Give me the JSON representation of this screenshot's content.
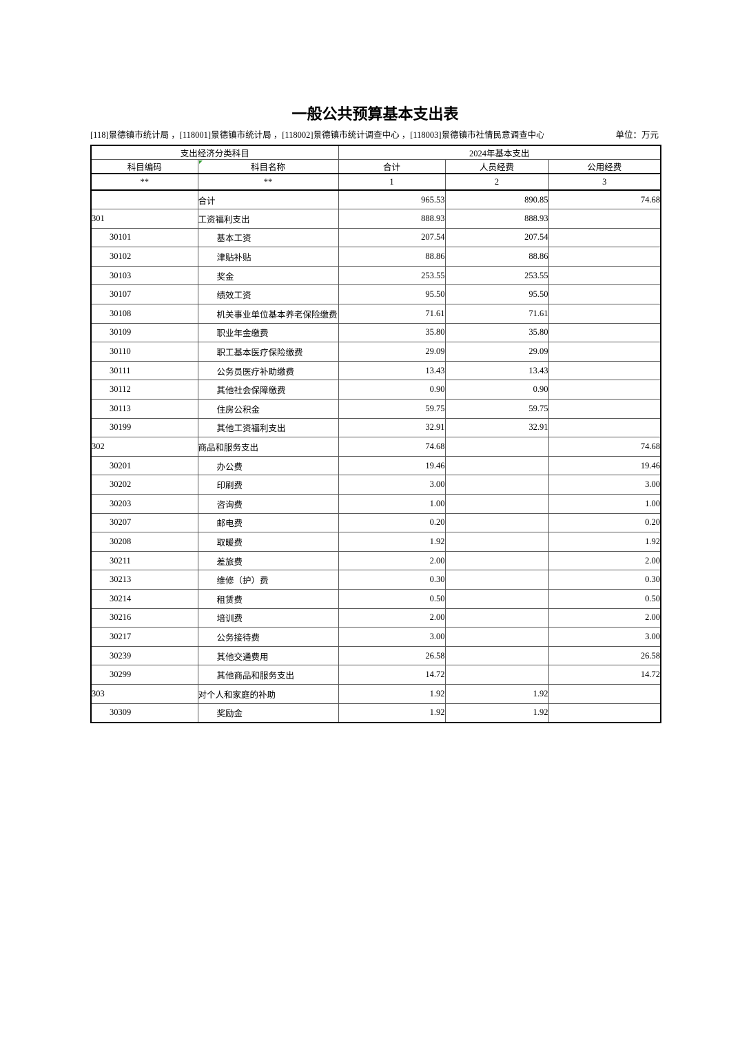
{
  "page": {
    "title": "一般公共预算基本支出表",
    "org_line": "[118]景德镇市统计局 ，[118001]景德镇市统计局 ，[118002]景德镇市统计调查中心 ，[118003]景德镇市社情民意调查中心",
    "unit_label": "单位：万元"
  },
  "table": {
    "header": {
      "group_left": "支出经济分类科目",
      "group_right": "2024年基本支出",
      "columns": [
        "科目编码",
        "科目名称",
        "合计",
        "人员经费",
        "公用经费"
      ],
      "column_codes": [
        "**",
        "**",
        "1",
        "2",
        "3"
      ]
    },
    "rows": [
      {
        "code": "",
        "name": "合计",
        "level": 0,
        "total": "965.53",
        "personnel": "890.85",
        "public": "74.68"
      },
      {
        "code": "301",
        "name": "工资福利支出",
        "level": 0,
        "total": "888.93",
        "personnel": "888.93",
        "public": ""
      },
      {
        "code": "30101",
        "name": "基本工资",
        "level": 1,
        "total": "207.54",
        "personnel": "207.54",
        "public": ""
      },
      {
        "code": "30102",
        "name": "津贴补贴",
        "level": 1,
        "total": "88.86",
        "personnel": "88.86",
        "public": ""
      },
      {
        "code": "30103",
        "name": "奖金",
        "level": 1,
        "total": "253.55",
        "personnel": "253.55",
        "public": ""
      },
      {
        "code": "30107",
        "name": "绩效工资",
        "level": 1,
        "total": "95.50",
        "personnel": "95.50",
        "public": ""
      },
      {
        "code": "30108",
        "name": "机关事业单位基本养老保险缴费",
        "level": 1,
        "total": "71.61",
        "personnel": "71.61",
        "public": ""
      },
      {
        "code": "30109",
        "name": "职业年金缴费",
        "level": 1,
        "total": "35.80",
        "personnel": "35.80",
        "public": ""
      },
      {
        "code": "30110",
        "name": "职工基本医疗保险缴费",
        "level": 1,
        "total": "29.09",
        "personnel": "29.09",
        "public": ""
      },
      {
        "code": "30111",
        "name": "公务员医疗补助缴费",
        "level": 1,
        "total": "13.43",
        "personnel": "13.43",
        "public": ""
      },
      {
        "code": "30112",
        "name": "其他社会保障缴费",
        "level": 1,
        "total": "0.90",
        "personnel": "0.90",
        "public": ""
      },
      {
        "code": "30113",
        "name": "住房公积金",
        "level": 1,
        "total": "59.75",
        "personnel": "59.75",
        "public": ""
      },
      {
        "code": "30199",
        "name": "其他工资福利支出",
        "level": 1,
        "total": "32.91",
        "personnel": "32.91",
        "public": ""
      },
      {
        "code": "302",
        "name": "商品和服务支出",
        "level": 0,
        "total": "74.68",
        "personnel": "",
        "public": "74.68"
      },
      {
        "code": "30201",
        "name": "办公费",
        "level": 1,
        "total": "19.46",
        "personnel": "",
        "public": "19.46"
      },
      {
        "code": "30202",
        "name": "印刷费",
        "level": 1,
        "total": "3.00",
        "personnel": "",
        "public": "3.00"
      },
      {
        "code": "30203",
        "name": "咨询费",
        "level": 1,
        "total": "1.00",
        "personnel": "",
        "public": "1.00"
      },
      {
        "code": "30207",
        "name": "邮电费",
        "level": 1,
        "total": "0.20",
        "personnel": "",
        "public": "0.20"
      },
      {
        "code": "30208",
        "name": "取暖费",
        "level": 1,
        "total": "1.92",
        "personnel": "",
        "public": "1.92"
      },
      {
        "code": "30211",
        "name": "差旅费",
        "level": 1,
        "total": "2.00",
        "personnel": "",
        "public": "2.00"
      },
      {
        "code": "30213",
        "name": "维修（护）费",
        "level": 1,
        "total": "0.30",
        "personnel": "",
        "public": "0.30"
      },
      {
        "code": "30214",
        "name": "租赁费",
        "level": 1,
        "total": "0.50",
        "personnel": "",
        "public": "0.50"
      },
      {
        "code": "30216",
        "name": "培训费",
        "level": 1,
        "total": "2.00",
        "personnel": "",
        "public": "2.00"
      },
      {
        "code": "30217",
        "name": "公务接待费",
        "level": 1,
        "total": "3.00",
        "personnel": "",
        "public": "3.00"
      },
      {
        "code": "30239",
        "name": "其他交通费用",
        "level": 1,
        "total": "26.58",
        "personnel": "",
        "public": "26.58"
      },
      {
        "code": "30299",
        "name": "其他商品和服务支出",
        "level": 1,
        "total": "14.72",
        "personnel": "",
        "public": "14.72"
      },
      {
        "code": "303",
        "name": "对个人和家庭的补助",
        "level": 0,
        "total": "1.92",
        "personnel": "1.92",
        "public": ""
      },
      {
        "code": "30309",
        "name": "奖励金",
        "level": 1,
        "total": "1.92",
        "personnel": "1.92",
        "public": ""
      }
    ]
  },
  "colors": {
    "outer_border": "#000000",
    "inner_border": "#595959",
    "corner_indicator_green": "#2f9e2f",
    "text": "#000000",
    "background": "#ffffff"
  },
  "icons": {
    "corner_indicator": "green-corner-triangle"
  }
}
